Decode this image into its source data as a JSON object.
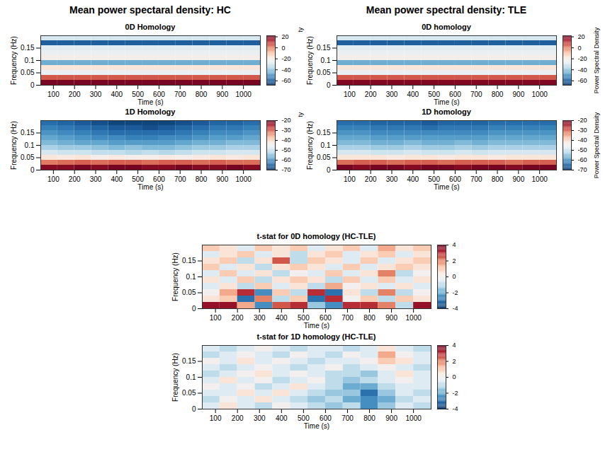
{
  "headers": [
    "Mean power spectaral density: HC",
    "Mean power spectral density: TLE"
  ],
  "chart_data": [
    {
      "type": "heatmap",
      "group": "Mean power spectaral density: HC",
      "title": "0D Homology",
      "x_label": "Time (s)",
      "y_label": "Frequency (Hz)",
      "xlim": [
        40,
        1080
      ],
      "xticks": [
        100,
        200,
        300,
        400,
        500,
        600,
        700,
        800,
        900,
        1000
      ],
      "ylim": [
        0,
        0.2
      ],
      "yticks": [
        0,
        0.05,
        0.1,
        0.15
      ],
      "time_bins": [
        40,
        120,
        200,
        280,
        360,
        440,
        520,
        600,
        680,
        760,
        840,
        920,
        1000,
        1080
      ],
      "frequency_bins": [
        0,
        0.02,
        0.04,
        0.06,
        0.08,
        0.1,
        0.12,
        0.14,
        0.16,
        0.18,
        0.2
      ],
      "values": [
        [
          20,
          20,
          20,
          20,
          20,
          20,
          20,
          20,
          20,
          20,
          20,
          20,
          20
        ],
        [
          5,
          5,
          5,
          5,
          5,
          5,
          5,
          5,
          5,
          5,
          5,
          5,
          5
        ],
        [
          -25,
          -25,
          -25,
          -25,
          -25,
          -25,
          -25,
          -25,
          -25,
          -25,
          -25,
          -25,
          -25
        ],
        [
          -18,
          -18,
          -18,
          -18,
          -18,
          -18,
          -18,
          -18,
          -18,
          -18,
          -18,
          -18,
          -18
        ],
        [
          -45,
          -45,
          -45,
          -45,
          -45,
          -45,
          -45,
          -45,
          -45,
          -45,
          -45,
          -45,
          -45
        ],
        [
          -22,
          -22,
          -22,
          -22,
          -22,
          -22,
          -22,
          -22,
          -22,
          -22,
          -22,
          -22,
          -22
        ],
        [
          -25,
          -25,
          -25,
          -25,
          -25,
          -25,
          -25,
          -25,
          -25,
          -25,
          -25,
          -25,
          -25
        ],
        [
          -28,
          -28,
          -28,
          -28,
          -28,
          -28,
          -28,
          -28,
          -28,
          -28,
          -28,
          -28,
          -28
        ],
        [
          -60,
          -60,
          -60,
          -60,
          -60,
          -60,
          -60,
          -60,
          -60,
          -60,
          -60,
          -60,
          -60
        ],
        [
          -30,
          -30,
          -30,
          -30,
          -30,
          -30,
          -30,
          -30,
          -30,
          -30,
          -30,
          -30,
          -30
        ]
      ],
      "colorbar": {
        "label": "Power Spectral Density",
        "range": [
          -68,
          22
        ],
        "ticks": [
          -60,
          -40,
          -20,
          0,
          20
        ]
      }
    },
    {
      "type": "heatmap",
      "group": "Mean power spectaral density: HC",
      "title": "1D Homology",
      "x_label": "Time (s)",
      "y_label": "Frequency (Hz)",
      "xlim": [
        40,
        1080
      ],
      "xticks": [
        100,
        200,
        300,
        400,
        500,
        600,
        700,
        800,
        900,
        1000
      ],
      "ylim": [
        0,
        0.2
      ],
      "yticks": [
        0,
        0.05,
        0.1,
        0.15
      ],
      "time_bins": [
        40,
        120,
        200,
        280,
        360,
        440,
        520,
        600,
        680,
        760,
        840,
        920,
        1000,
        1080
      ],
      "frequency_bins": [
        0,
        0.02,
        0.04,
        0.06,
        0.08,
        0.1,
        0.12,
        0.14,
        0.16,
        0.18,
        0.2
      ],
      "values": [
        [
          -22,
          -22,
          -21,
          -22,
          -21,
          -21,
          -22,
          -22,
          -21,
          -22,
          -22,
          -21,
          -22
        ],
        [
          -32,
          -31,
          -30,
          -31,
          -30,
          -30,
          -31,
          -30,
          -30,
          -31,
          -30,
          -31,
          -31
        ],
        [
          -42,
          -43,
          -42,
          -44,
          -43,
          -44,
          -44,
          -43,
          -44,
          -43,
          -42,
          -43,
          -42
        ],
        [
          -49,
          -50,
          -50,
          -51,
          -51,
          -52,
          -51,
          -52,
          -51,
          -50,
          -50,
          -49,
          -49
        ],
        [
          -53,
          -54,
          -54,
          -55,
          -56,
          -55,
          -56,
          -56,
          -55,
          -54,
          -54,
          -53,
          -53
        ],
        [
          -56,
          -57,
          -58,
          -58,
          -59,
          -59,
          -59,
          -59,
          -58,
          -57,
          -57,
          -56,
          -56
        ],
        [
          -58,
          -59,
          -60,
          -61,
          -61,
          -62,
          -62,
          -61,
          -61,
          -60,
          -59,
          -59,
          -58
        ],
        [
          -60,
          -61,
          -62,
          -63,
          -64,
          -64,
          -64,
          -64,
          -63,
          -62,
          -61,
          -61,
          -60
        ],
        [
          -62,
          -63,
          -64,
          -65,
          -66,
          -66,
          -67,
          -66,
          -65,
          -64,
          -63,
          -63,
          -62
        ],
        [
          -64,
          -65,
          -66,
          -67,
          -68,
          -68,
          -68,
          -68,
          -67,
          -66,
          -65,
          -65,
          -64
        ]
      ],
      "colorbar": {
        "label": "Power Spectral Density",
        "range": [
          -70,
          -20
        ],
        "ticks": [
          -70,
          -60,
          -50,
          -40,
          -30,
          -20
        ]
      }
    },
    {
      "type": "heatmap",
      "group": "Mean power spectral density: TLE",
      "title": "0D homology",
      "x_label": "Time (s)",
      "y_label": "Frequency (Hz)",
      "xlim": [
        40,
        1080
      ],
      "xticks": [
        100,
        200,
        300,
        400,
        500,
        600,
        700,
        800,
        900,
        1000
      ],
      "ylim": [
        0,
        0.2
      ],
      "yticks": [
        0,
        0.05,
        0.1,
        0.15
      ],
      "time_bins": [
        40,
        120,
        200,
        280,
        360,
        440,
        520,
        600,
        680,
        760,
        840,
        920,
        1000,
        1080
      ],
      "frequency_bins": [
        0,
        0.02,
        0.04,
        0.06,
        0.08,
        0.1,
        0.12,
        0.14,
        0.16,
        0.18,
        0.2
      ],
      "values": [
        [
          19,
          19,
          19,
          19,
          19,
          19,
          19,
          19,
          19,
          19,
          19,
          19,
          19
        ],
        [
          5,
          5,
          5,
          5,
          5,
          5,
          5,
          5,
          5,
          5,
          5,
          5,
          5
        ],
        [
          -25,
          -25,
          -25,
          -25,
          -25,
          -25,
          -25,
          -25,
          -25,
          -25,
          -25,
          -25,
          -25
        ],
        [
          -18,
          -18,
          -18,
          -18,
          -18,
          -18,
          -18,
          -18,
          -18,
          -18,
          -18,
          -18,
          -18
        ],
        [
          -45,
          -45,
          -45,
          -45,
          -45,
          -45,
          -45,
          -45,
          -45,
          -45,
          -45,
          -45,
          -45
        ],
        [
          -22,
          -22,
          -22,
          -22,
          -22,
          -22,
          -22,
          -22,
          -22,
          -22,
          -22,
          -22,
          -22
        ],
        [
          -25,
          -25,
          -25,
          -25,
          -25,
          -25,
          -25,
          -25,
          -25,
          -25,
          -25,
          -25,
          -25
        ],
        [
          -28,
          -28,
          -28,
          -28,
          -28,
          -28,
          -28,
          -28,
          -28,
          -28,
          -28,
          -28,
          -28
        ],
        [
          -60,
          -60,
          -60,
          -60,
          -60,
          -60,
          -60,
          -60,
          -60,
          -60,
          -60,
          -60,
          -60
        ],
        [
          -30,
          -30,
          -30,
          -30,
          -30,
          -30,
          -30,
          -30,
          -30,
          -30,
          -30,
          -30,
          -30
        ]
      ],
      "colorbar": {
        "label": "Power Spectral Density",
        "range": [
          -68,
          22
        ],
        "ticks": [
          -60,
          -40,
          -20,
          0,
          20
        ]
      }
    },
    {
      "type": "heatmap",
      "group": "Mean power spectral density: TLE",
      "title": "1D homology",
      "x_label": "Time (s)",
      "y_label": "Frequency (Hz)",
      "xlim": [
        40,
        1080
      ],
      "xticks": [
        100,
        200,
        300,
        400,
        500,
        600,
        700,
        800,
        900,
        1000
      ],
      "ylim": [
        0,
        0.2
      ],
      "yticks": [
        0,
        0.05,
        0.1,
        0.15
      ],
      "time_bins": [
        40,
        120,
        200,
        280,
        360,
        440,
        520,
        600,
        680,
        760,
        840,
        920,
        1000,
        1080
      ],
      "frequency_bins": [
        0,
        0.02,
        0.04,
        0.06,
        0.08,
        0.1,
        0.12,
        0.14,
        0.16,
        0.18,
        0.2
      ],
      "values": [
        [
          -21,
          -22,
          -21,
          -21,
          -22,
          -21,
          -21,
          -22,
          -21,
          -21,
          -22,
          -21,
          -21
        ],
        [
          -31,
          -30,
          -30,
          -31,
          -30,
          -30,
          -31,
          -30,
          -30,
          -30,
          -31,
          -30,
          -30
        ],
        [
          -42,
          -42,
          -42,
          -43,
          -42,
          -42,
          -43,
          -42,
          -42,
          -43,
          -42,
          -42,
          -42
        ],
        [
          -49,
          -49,
          -50,
          -50,
          -49,
          -50,
          -50,
          -49,
          -50,
          -49,
          -49,
          -49,
          -49
        ],
        [
          -53,
          -53,
          -54,
          -54,
          -53,
          -54,
          -54,
          -53,
          -54,
          -53,
          -53,
          -53,
          -53
        ],
        [
          -56,
          -56,
          -57,
          -57,
          -56,
          -57,
          -57,
          -56,
          -57,
          -56,
          -56,
          -56,
          -56
        ],
        [
          -58,
          -58,
          -59,
          -59,
          -59,
          -59,
          -59,
          -59,
          -59,
          -58,
          -58,
          -58,
          -58
        ],
        [
          -60,
          -60,
          -61,
          -61,
          -61,
          -61,
          -61,
          -61,
          -61,
          -60,
          -60,
          -60,
          -60
        ],
        [
          -62,
          -62,
          -63,
          -63,
          -63,
          -64,
          -63,
          -63,
          -63,
          -62,
          -62,
          -62,
          -62
        ],
        [
          -64,
          -64,
          -65,
          -65,
          -65,
          -66,
          -65,
          -65,
          -65,
          -64,
          -64,
          -64,
          -64
        ]
      ],
      "colorbar": {
        "label": "Power Spectral Density",
        "range": [
          -70,
          -20
        ],
        "ticks": [
          -70,
          -60,
          -50,
          -40,
          -30,
          -20
        ]
      }
    },
    {
      "type": "heatmap",
      "title": "t-stat for 0D homology (HC-TLE)",
      "x_label": "Time (s)",
      "y_label": "Frequency (Hz)",
      "xlim": [
        40,
        1080
      ],
      "xticks": [
        100,
        200,
        300,
        400,
        500,
        600,
        700,
        800,
        900,
        1000
      ],
      "ylim": [
        0,
        0.2
      ],
      "yticks": [
        0,
        0.05,
        0.1,
        0.15
      ],
      "time_bins": [
        40,
        120,
        200,
        280,
        360,
        440,
        520,
        600,
        680,
        760,
        840,
        920,
        1000,
        1080
      ],
      "frequency_bins": [
        0,
        0.02,
        0.04,
        0.06,
        0.08,
        0.1,
        0.12,
        0.14,
        0.16,
        0.18,
        0.2
      ],
      "values": [
        [
          3.5,
          3.5,
          1.5,
          -2.5,
          2.5,
          3,
          -1.5,
          -2.5,
          3,
          3,
          2,
          -1,
          3.5
        ],
        [
          0.5,
          1,
          -3,
          2,
          -1,
          1,
          -3,
          3,
          0,
          1,
          -1,
          1,
          0.5
        ],
        [
          0,
          1.5,
          3,
          -2.5,
          1,
          -1,
          3,
          -3,
          0.5,
          -1,
          2,
          -1,
          0
        ],
        [
          -0.5,
          0.5,
          -1,
          1,
          -0.5,
          0.5,
          -1,
          1.5,
          0,
          0.5,
          -0.5,
          0.5,
          -0.5
        ],
        [
          0.5,
          -0.5,
          1,
          -1,
          0.5,
          1,
          0.5,
          -1,
          1,
          -0.5,
          1,
          -0.5,
          0.5
        ],
        [
          -0.5,
          1,
          -0.5,
          0.5,
          -1,
          0,
          -0.5,
          1,
          -0.5,
          0.5,
          2,
          -1,
          0
        ],
        [
          1,
          -0.5,
          0.5,
          -1,
          0.5,
          1,
          0.5,
          -0.5,
          1,
          -0.5,
          0.5,
          1,
          0.5
        ],
        [
          0.5,
          1,
          -1,
          0.5,
          2.5,
          -1,
          1,
          0.5,
          -0.5,
          1,
          -0.5,
          0.5,
          1
        ],
        [
          -0.5,
          0.5,
          1,
          -0.5,
          0.5,
          -1,
          0.5,
          1,
          -0.5,
          0.5,
          1,
          -0.5,
          0.5
        ],
        [
          1,
          0.5,
          -0.5,
          1,
          0.5,
          1,
          -0.5,
          0.5,
          1,
          -0.5,
          1.5,
          0.5,
          1
        ]
      ],
      "colorbar": {
        "range": [
          -4,
          4
        ],
        "ticks": [
          -4,
          -2,
          0,
          2,
          4
        ]
      }
    },
    {
      "type": "heatmap",
      "title": "t-stat for 1D homology (HC-TLE)",
      "x_label": "Time (s)",
      "y_label": "Frequency (Hz)",
      "xlim": [
        40,
        1080
      ],
      "xticks": [
        100,
        200,
        300,
        400,
        500,
        600,
        700,
        800,
        900,
        1000
      ],
      "ylim": [
        0,
        0.2
      ],
      "yticks": [
        0,
        0.05,
        0.1,
        0.15
      ],
      "time_bins": [
        40,
        120,
        200,
        280,
        360,
        440,
        520,
        600,
        680,
        760,
        840,
        920,
        1000,
        1080
      ],
      "frequency_bins": [
        0,
        0.02,
        0.04,
        0.06,
        0.08,
        0.1,
        0.12,
        0.14,
        0.16,
        0.18,
        0.2
      ],
      "values": [
        [
          -0.5,
          0.5,
          -0.5,
          -1,
          0,
          -0.5,
          -1,
          -1.5,
          -1,
          -2.5,
          -1.5,
          -0.5,
          -1
        ],
        [
          -1,
          0,
          -0.5,
          0.5,
          -0.5,
          -1,
          -1.5,
          -1,
          -2,
          -2.5,
          -2,
          -1,
          -0.5
        ],
        [
          -0.5,
          -0.5,
          0.5,
          -0.5,
          0.5,
          -0.5,
          -1,
          -1.5,
          -1.5,
          -3,
          -1.5,
          -0.5,
          -1
        ],
        [
          0,
          -0.5,
          0,
          -1,
          -0.5,
          0.5,
          -0.5,
          -1,
          -2,
          -2,
          -1,
          -0.5,
          -0.5
        ],
        [
          -0.5,
          0.5,
          -0.5,
          0,
          -1,
          -0.5,
          0,
          -1,
          -1.5,
          -1,
          -0.5,
          0,
          -0.5
        ],
        [
          -1,
          -0.5,
          0,
          0.5,
          -0.5,
          0,
          -0.5,
          -1,
          -1,
          -1.5,
          -0.5,
          0.5,
          -0.5
        ],
        [
          -0.5,
          -1,
          -0.5,
          0,
          -0.5,
          -1,
          -0.5,
          0,
          -1,
          -0.5,
          0,
          -0.5,
          -1
        ],
        [
          0,
          -0.5,
          0.5,
          -0.5,
          0,
          -0.5,
          -1,
          -0.5,
          -0.5,
          0,
          1,
          0.5,
          -0.5
        ],
        [
          -1,
          -0.5,
          0,
          -0.5,
          -1,
          0,
          -0.5,
          -1,
          0,
          -0.5,
          1.5,
          0,
          -0.5
        ],
        [
          -0.5,
          -1,
          -0.5,
          0,
          -0.5,
          -1,
          -0.5,
          -0.5,
          -1,
          -0.5,
          0.5,
          -0.5,
          -1
        ]
      ],
      "colorbar": {
        "range": [
          -4,
          4
        ],
        "ticks": [
          -4,
          -2,
          0,
          2,
          4
        ]
      }
    }
  ]
}
